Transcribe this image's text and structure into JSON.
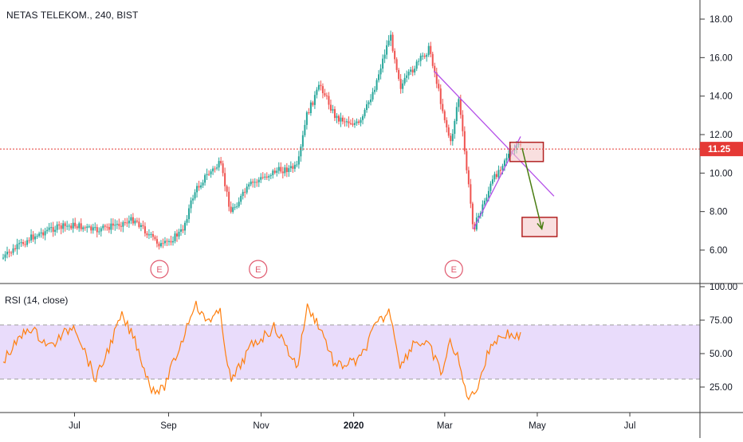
{
  "header": {
    "symbol_title": "NETAS TELEKOM., 240, BIST"
  },
  "rsi_panel": {
    "label": "RSI (14, close)"
  },
  "colors": {
    "up_candle": "#26a69a",
    "down_candle": "#ef5350",
    "rsi_line": "#ff7f0e",
    "rsi_band": "#e9dcfb",
    "trend_line": "#b44fe8",
    "forecast_arrow": "#4a7d12",
    "box_stroke": "#b22222",
    "box_fill": "#f5c9c9",
    "price_line": "#e53935",
    "earnings_marker": "#e05a6f"
  },
  "chart_data": [
    {
      "type": "line",
      "title": "NETAS TELEKOM., 240, BIST",
      "x_tick_labels": [
        "Jul",
        "Sep",
        "Nov",
        "2020",
        "Mar",
        "May",
        "Jul"
      ],
      "y_tick_labels": [
        "6.00",
        "8.00",
        "10.00",
        "12.00",
        "14.00",
        "16.00",
        "18.00"
      ],
      "ylim": [
        4.9,
        18.6
      ],
      "current_price": {
        "value": 11.25,
        "label": "11.25"
      },
      "earnings_markers": [
        "E",
        "E",
        "E"
      ],
      "series": [
        {
          "name": "NETAS TELEKOM.",
          "points": [
            {
              "x": "2019-05-15",
              "y": 5.6
            },
            {
              "x": "2019-06-01",
              "y": 6.6
            },
            {
              "x": "2019-06-15",
              "y": 7.1
            },
            {
              "x": "2019-07-01",
              "y": 7.3
            },
            {
              "x": "2019-07-15",
              "y": 7.0
            },
            {
              "x": "2019-08-01",
              "y": 7.4
            },
            {
              "x": "2019-08-10",
              "y": 7.6
            },
            {
              "x": "2019-08-20",
              "y": 6.7
            },
            {
              "x": "2019-08-28",
              "y": 6.2
            },
            {
              "x": "2019-09-10",
              "y": 7.0
            },
            {
              "x": "2019-09-18",
              "y": 9.0
            },
            {
              "x": "2019-09-25",
              "y": 9.8
            },
            {
              "x": "2019-10-05",
              "y": 10.5
            },
            {
              "x": "2019-10-12",
              "y": 8.0
            },
            {
              "x": "2019-10-25",
              "y": 9.4
            },
            {
              "x": "2019-11-10",
              "y": 10.1
            },
            {
              "x": "2019-11-25",
              "y": 10.3
            },
            {
              "x": "2019-12-01",
              "y": 13.0
            },
            {
              "x": "2019-12-10",
              "y": 14.6
            },
            {
              "x": "2019-12-20",
              "y": 12.9
            },
            {
              "x": "2020-01-05",
              "y": 12.5
            },
            {
              "x": "2020-01-15",
              "y": 14.5
            },
            {
              "x": "2020-01-25",
              "y": 17.2
            },
            {
              "x": "2020-02-01",
              "y": 14.5
            },
            {
              "x": "2020-02-10",
              "y": 15.5
            },
            {
              "x": "2020-02-20",
              "y": 16.5
            },
            {
              "x": "2020-02-28",
              "y": 13.5
            },
            {
              "x": "2020-03-05",
              "y": 11.5
            },
            {
              "x": "2020-03-10",
              "y": 14.0
            },
            {
              "x": "2020-03-15",
              "y": 10.5
            },
            {
              "x": "2020-03-20",
              "y": 7.1
            },
            {
              "x": "2020-04-01",
              "y": 9.5
            },
            {
              "x": "2020-04-10",
              "y": 10.8
            },
            {
              "x": "2020-04-20",
              "y": 11.5
            }
          ]
        }
      ],
      "annotations": [
        {
          "kind": "trendline",
          "from": {
            "x": "2020-02-23",
            "y": 15.3
          },
          "to": {
            "x": "2020-05-12",
            "y": 8.8
          }
        },
        {
          "kind": "trendline",
          "from": {
            "x": "2020-03-20",
            "y": 7.1
          },
          "to": {
            "x": "2020-04-20",
            "y": 11.9
          }
        },
        {
          "kind": "rectangle",
          "x": [
            "2020-04-13",
            "2020-05-05"
          ],
          "y": [
            10.6,
            11.6
          ]
        },
        {
          "kind": "rectangle",
          "x": [
            "2020-04-21",
            "2020-05-14"
          ],
          "y": [
            6.7,
            7.7
          ]
        },
        {
          "kind": "arrow",
          "from": {
            "x": "2020-04-21",
            "y": 11.3
          },
          "to": {
            "x": "2020-05-04",
            "y": 7.1
          }
        },
        {
          "kind": "hline",
          "y": 11.25
        }
      ]
    },
    {
      "type": "line",
      "title": "RSI (14, close)",
      "x_tick_labels": [
        "Jul",
        "Sep",
        "Nov",
        "2020",
        "Mar",
        "May",
        "Jul"
      ],
      "y_tick_labels": [
        "25.00",
        "50.00",
        "75.00",
        "100.00"
      ],
      "ylim": [
        10,
        100
      ],
      "band": [
        30,
        70
      ],
      "series": [
        {
          "name": "RSI",
          "points": [
            {
              "x": "2019-05-15",
              "y": 45
            },
            {
              "x": "2019-06-01",
              "y": 70
            },
            {
              "x": "2019-06-15",
              "y": 55
            },
            {
              "x": "2019-07-01",
              "y": 72
            },
            {
              "x": "2019-07-15",
              "y": 30
            },
            {
              "x": "2019-08-01",
              "y": 78
            },
            {
              "x": "2019-08-10",
              "y": 60
            },
            {
              "x": "2019-08-20",
              "y": 25
            },
            {
              "x": "2019-08-28",
              "y": 22
            },
            {
              "x": "2019-09-10",
              "y": 60
            },
            {
              "x": "2019-09-18",
              "y": 88
            },
            {
              "x": "2019-09-25",
              "y": 75
            },
            {
              "x": "2019-10-05",
              "y": 80
            },
            {
              "x": "2019-10-12",
              "y": 28
            },
            {
              "x": "2019-10-25",
              "y": 55
            },
            {
              "x": "2019-11-10",
              "y": 70
            },
            {
              "x": "2019-11-25",
              "y": 40
            },
            {
              "x": "2019-12-01",
              "y": 85
            },
            {
              "x": "2019-12-10",
              "y": 70
            },
            {
              "x": "2019-12-20",
              "y": 40
            },
            {
              "x": "2020-01-05",
              "y": 45
            },
            {
              "x": "2020-01-15",
              "y": 70
            },
            {
              "x": "2020-01-25",
              "y": 82
            },
            {
              "x": "2020-02-01",
              "y": 40
            },
            {
              "x": "2020-02-10",
              "y": 60
            },
            {
              "x": "2020-02-20",
              "y": 55
            },
            {
              "x": "2020-02-28",
              "y": 35
            },
            {
              "x": "2020-03-05",
              "y": 60
            },
            {
              "x": "2020-03-10",
              "y": 45
            },
            {
              "x": "2020-03-15",
              "y": 20
            },
            {
              "x": "2020-03-20",
              "y": 18
            },
            {
              "x": "2020-04-01",
              "y": 58
            },
            {
              "x": "2020-04-10",
              "y": 65
            },
            {
              "x": "2020-04-20",
              "y": 62
            }
          ]
        }
      ]
    }
  ]
}
